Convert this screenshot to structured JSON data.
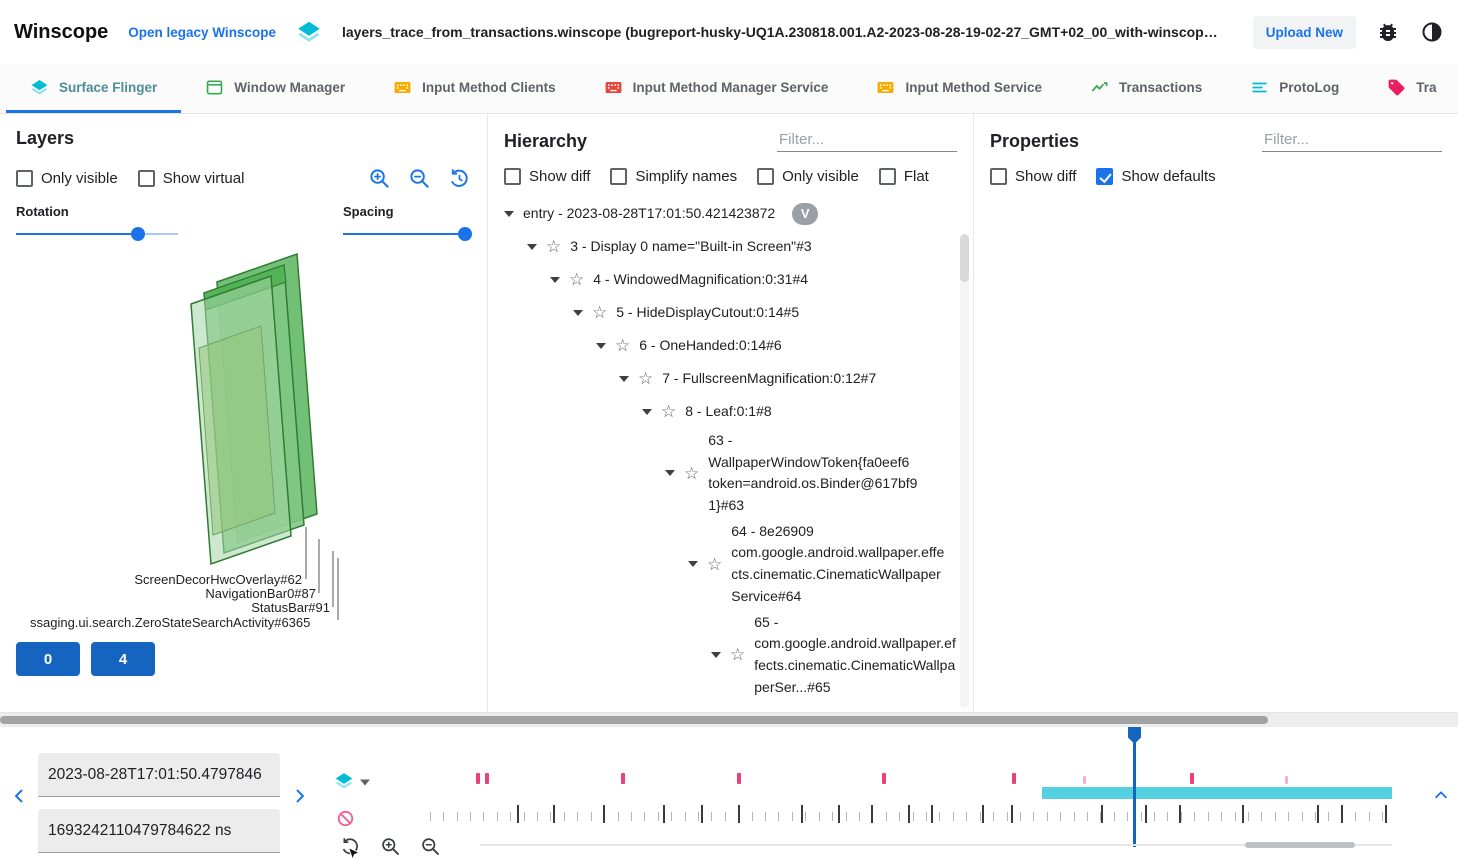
{
  "colors": {
    "accent": "#1a73e8",
    "teal": "#00bcd4",
    "pink": "#e91e63",
    "green": "#34a853",
    "button_blue": "#1565c0"
  },
  "header": {
    "app_title": "Winscope",
    "legacy_link": "Open legacy Winscope",
    "trace_file": "layers_trace_from_transactions.winscope (bugreport-husky-UQ1A.230818.001.A2-2023-08-28-19-02-27_GMT+02_00_with-winscope_REDACTED.zip)",
    "upload_button": "Upload New"
  },
  "tabs": [
    {
      "label": "Surface Flinger",
      "icon": "layers-icon",
      "color": "#00bcd4",
      "active": true
    },
    {
      "label": "Window Manager",
      "icon": "window-icon",
      "color": "#34a853",
      "active": false
    },
    {
      "label": "Input Method Clients",
      "icon": "keyboard-icon",
      "color": "#f9ab00",
      "active": false
    },
    {
      "label": "Input Method Manager Service",
      "icon": "keyboard-icon",
      "color": "#e8453c",
      "active": false
    },
    {
      "label": "Input Method Service",
      "icon": "keyboard-icon",
      "color": "#f9ab00",
      "active": false
    },
    {
      "label": "Transactions",
      "icon": "chart-icon",
      "color": "#34a853",
      "active": false
    },
    {
      "label": "ProtoLog",
      "icon": "list-icon",
      "color": "#00bcd4",
      "active": false
    },
    {
      "label": "Tra",
      "icon": "tag-icon",
      "color": "#e91e63",
      "active": false
    }
  ],
  "layers": {
    "title": "Layers",
    "only_visible_label": "Only visible",
    "show_virtual_label": "Show virtual",
    "rotation_label": "Rotation",
    "spacing_label": "Spacing",
    "rotation_pct": 75,
    "spacing_pct": 95,
    "scene_labels": [
      "ScreenDecorHwcOverlay#62",
      "NavigationBar0#87",
      "StatusBar#91",
      "ssaging.ui.search.ZeroStateSearchActivity#6365"
    ],
    "buttons": [
      "0",
      "4"
    ]
  },
  "hierarchy": {
    "title": "Hierarchy",
    "filter_placeholder": "Filter...",
    "checkboxes": [
      "Show diff",
      "Simplify names",
      "Only visible",
      "Flat"
    ],
    "tree": [
      {
        "label": "entry - 2023-08-28T17:01:50.421423872",
        "chip": "V",
        "depth": 0
      },
      {
        "label": "3 - Display 0 name=\"Built-in Screen\"#3",
        "depth": 1,
        "star": true
      },
      {
        "label": "4 - WindowedMagnification:0:31#4",
        "depth": 2,
        "star": true
      },
      {
        "label": "5 - HideDisplayCutout:0:14#5",
        "depth": 3,
        "star": true
      },
      {
        "label": "6 - OneHanded:0:14#6",
        "depth": 4,
        "star": true
      },
      {
        "label": "7 - FullscreenMagnification:0:12#7",
        "depth": 5,
        "star": true
      },
      {
        "label": "8 - Leaf:0:1#8",
        "depth": 6,
        "star": true
      },
      {
        "label": "63 - WallpaperWindowToken{fa0eef6 token=android.os.Binder@617bf91}#63",
        "depth": 7,
        "star": true
      },
      {
        "label": "64 - 8e26909 com.google.android.wallpaper.effects.cinematic.CinematicWallpaperService#64",
        "depth": 8,
        "star": true
      },
      {
        "label": "65 - com.google.android.wallpaper.effects.cinematic.CinematicWallpaperSer...#65",
        "depth": 9,
        "star": true
      }
    ]
  },
  "properties": {
    "title": "Properties",
    "filter_placeholder": "Filter...",
    "show_diff_label": "Show diff",
    "show_defaults_label": "Show defaults"
  },
  "timeline": {
    "timestamp_human": "2023-08-28T17:01:50.4797846",
    "timestamp_ns": "1693242110479784622 ns",
    "cursor_pct": 73.5,
    "selection": {
      "start_pct": 64,
      "width_pct": 36
    },
    "markers": [
      {
        "pos": 5.8,
        "strong": true
      },
      {
        "pos": 6.7,
        "strong": true
      },
      {
        "pos": 20.7,
        "strong": true
      },
      {
        "pos": 32.6,
        "strong": true
      },
      {
        "pos": 47.5,
        "strong": true
      },
      {
        "pos": 60.9,
        "strong": true
      },
      {
        "pos": 68.2,
        "strong": false
      },
      {
        "pos": 79.2,
        "strong": true
      },
      {
        "pos": 89.0,
        "strong": false
      }
    ],
    "frame_ticks": [
      10,
      13.7,
      18.8,
      25,
      28.9,
      32.7,
      39.2,
      43,
      46.4,
      50.2,
      52.6,
      57.8,
      60.8,
      70.1,
      74.6,
      78.1,
      84.6,
      92.3,
      94.8,
      99.3
    ],
    "top_scroll_thumb_pct": 87,
    "bottom_thumb": {
      "start_pct": 83.9,
      "width_pct": 12
    }
  }
}
